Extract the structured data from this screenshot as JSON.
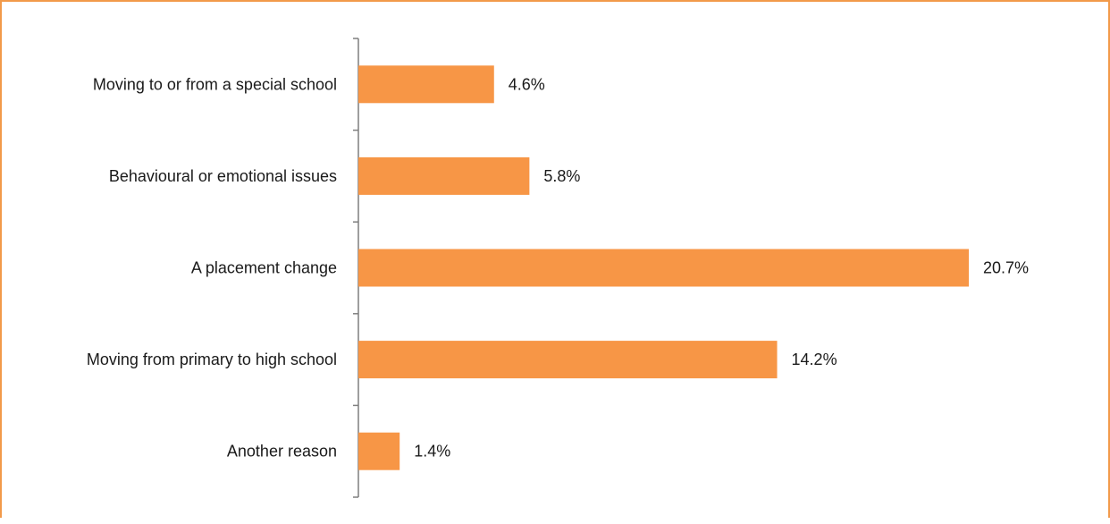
{
  "chart_data": {
    "type": "bar",
    "orientation": "horizontal",
    "categories": [
      "Moving to or from a special school",
      "Behavioural or emotional issues",
      "A placement change",
      "Moving from primary to high school",
      "Another reason"
    ],
    "values": [
      4.6,
      5.8,
      20.7,
      14.2,
      1.4
    ],
    "value_labels": [
      "4.6%",
      "5.8%",
      "20.7%",
      "14.2%",
      "1.4%"
    ],
    "unit": "%",
    "xlim": [
      0,
      20.7
    ],
    "grid": false,
    "legend": "none",
    "colors": {
      "bar": "#f79646",
      "frame": "#f29a4a",
      "axis": "#7f7f7f",
      "text": "#1a1a1a"
    }
  }
}
